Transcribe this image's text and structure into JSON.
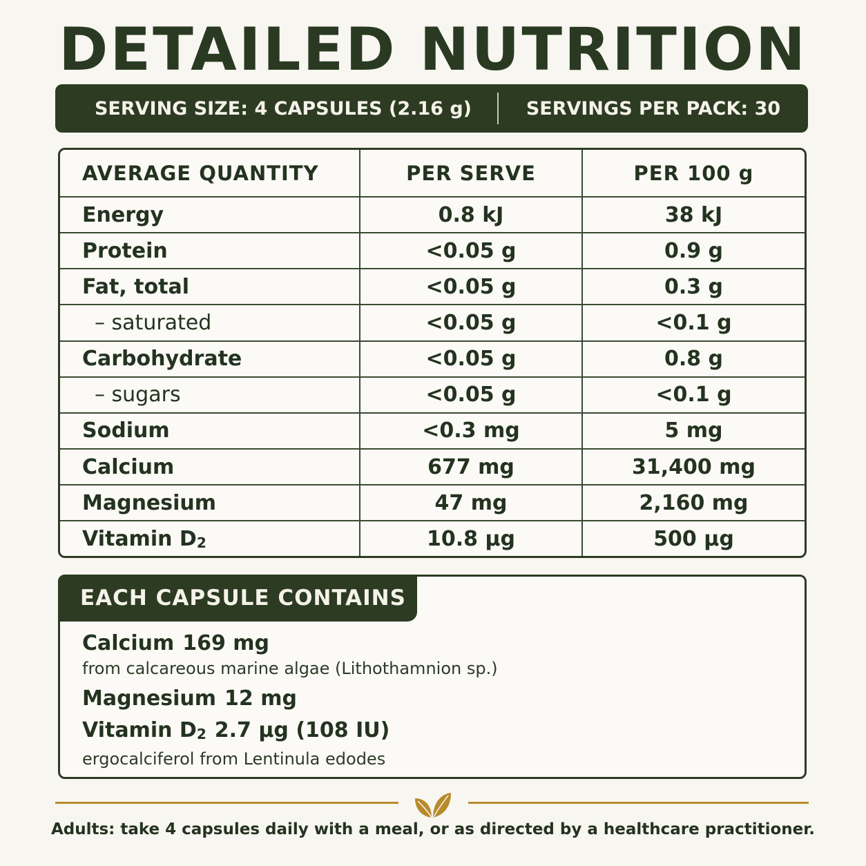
{
  "title": "DETAILED NUTRITION",
  "serving": {
    "size": "SERVING SIZE: 4 CAPSULES (2.16 g)",
    "per_pack": "SERVINGS PER PACK: 30"
  },
  "table": {
    "headers": [
      "AVERAGE QUANTITY",
      "PER SERVE",
      "PER 100 g"
    ],
    "rows": [
      {
        "name": "Energy",
        "per_serve": "0.8 kJ",
        "per_100g": "38 kJ"
      },
      {
        "name": "Protein",
        "per_serve": "<0.05 g",
        "per_100g": "0.9 g"
      },
      {
        "name": "Fat, total",
        "per_serve": "<0.05 g",
        "per_100g": "0.3 g"
      },
      {
        "name": "– saturated",
        "per_serve": "<0.05 g",
        "per_100g": "<0.1 g"
      },
      {
        "name": "Carbohydrate",
        "per_serve": "<0.05 g",
        "per_100g": "0.8 g"
      },
      {
        "name": "– sugars",
        "per_serve": "<0.05 g",
        "per_100g": "<0.1 g"
      },
      {
        "name": "Sodium",
        "per_serve": "<0.3 mg",
        "per_100g": "5 mg"
      },
      {
        "name": "Calcium",
        "per_serve": "677 mg",
        "per_100g": "31,400 mg"
      },
      {
        "name": "Magnesium",
        "per_serve": "47 mg",
        "per_100g": "2,160 mg"
      },
      {
        "name": "Vitamin D",
        "name_sub": "2",
        "per_serve": "10.8 µg",
        "per_100g": "500 µg"
      }
    ]
  },
  "capsule": {
    "heading": "EACH CAPSULE CONTAINS",
    "calcium_name": "Calcium",
    "calcium_value": "169 mg",
    "calcium_note": "from calcareous marine algae (Lithothamnion sp.)",
    "magnesium_name": "Magnesium",
    "magnesium_value": "12 mg",
    "vitd_name": "Vitamin D",
    "vitd_sub": "2",
    "vitd_value": "2.7 µg (108 IU)",
    "vitd_note": "ergocalciferol from Lentinula edodes"
  },
  "footer": "Adults: take 4 capsules daily with a meal, or as directed by a healthcare practitioner.",
  "colors": {
    "dark_green": "#2c3b22",
    "gold": "#b88a2c",
    "background": "#f8f6f1"
  },
  "icons": {
    "divider": "leaf-icon"
  }
}
